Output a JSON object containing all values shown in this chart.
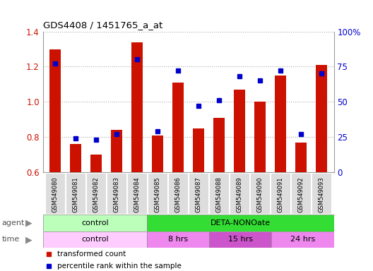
{
  "title": "GDS4408 / 1451765_a_at",
  "samples": [
    "GSM549080",
    "GSM549081",
    "GSM549082",
    "GSM549083",
    "GSM549084",
    "GSM549085",
    "GSM549086",
    "GSM549087",
    "GSM549088",
    "GSM549089",
    "GSM549090",
    "GSM549091",
    "GSM549092",
    "GSM549093"
  ],
  "transformed_count": [
    1.3,
    0.76,
    0.7,
    0.84,
    1.34,
    0.81,
    1.11,
    0.85,
    0.91,
    1.07,
    1.0,
    1.15,
    0.77,
    1.21
  ],
  "percentile_rank": [
    77,
    24,
    23,
    27,
    80,
    29,
    72,
    47,
    51,
    68,
    65,
    72,
    27,
    70
  ],
  "ylim_left": [
    0.6,
    1.4
  ],
  "ylim_right": [
    0,
    100
  ],
  "yticks_left": [
    0.6,
    0.8,
    1.0,
    1.2,
    1.4
  ],
  "yticks_right": [
    0,
    25,
    50,
    75,
    100
  ],
  "ytick_labels_right": [
    "0",
    "25",
    "50",
    "75",
    "100%"
  ],
  "bar_color": "#cc1100",
  "dot_color": "#0000cc",
  "agent_groups": [
    {
      "label": "control",
      "start": 0,
      "end": 5,
      "color": "#bbffbb"
    },
    {
      "label": "DETA-NONOate",
      "start": 5,
      "end": 14,
      "color": "#33dd33"
    }
  ],
  "time_groups": [
    {
      "label": "control",
      "start": 0,
      "end": 5,
      "color": "#ffccff"
    },
    {
      "label": "8 hrs",
      "start": 5,
      "end": 8,
      "color": "#ee88ee"
    },
    {
      "label": "15 hrs",
      "start": 8,
      "end": 11,
      "color": "#cc55cc"
    },
    {
      "label": "24 hrs",
      "start": 11,
      "end": 14,
      "color": "#ee88ee"
    }
  ],
  "legend_items": [
    {
      "label": "transformed count",
      "color": "#cc1100"
    },
    {
      "label": "percentile rank within the sample",
      "color": "#0000cc"
    }
  ],
  "tick_bg_color": "#dddddd",
  "spine_color": "#999999"
}
